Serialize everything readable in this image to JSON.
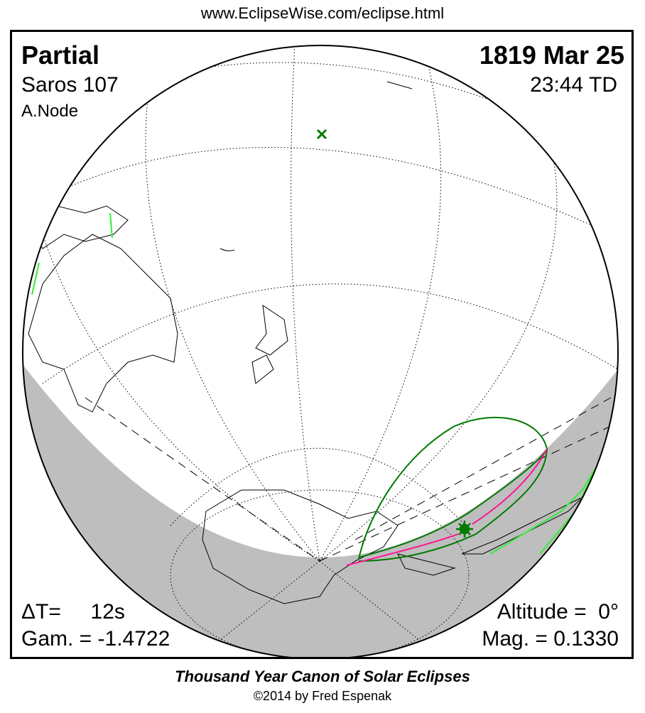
{
  "header": {
    "url": "www.EclipseWise.com/eclipse.html"
  },
  "eclipse": {
    "type": "Partial",
    "saros": "Saros 107",
    "node": "A.Node",
    "date": "1819 Mar 25",
    "time": "23:44 TD",
    "delta_t": "ΔT=     12s",
    "gamma": "Gam. = -1.4722",
    "altitude": "Altitude =  0°",
    "magnitude": "Mag. = 0.1330"
  },
  "footer": {
    "title": "Thousand Year Canon of Solar Eclipses",
    "copyright": "©2014 by Fred Espenak"
  },
  "colors": {
    "night": "#bebebe",
    "penumbra_limits": "#007a00",
    "max_eclipse_line": "#ff1493",
    "rise_set_curve": "#33ee33"
  },
  "markers": {
    "sub_solar_point": "x-mark-icon",
    "greatest_eclipse": "star-icon"
  }
}
